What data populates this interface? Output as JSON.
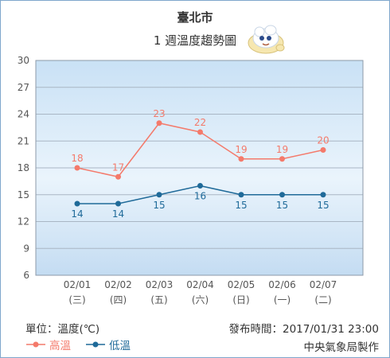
{
  "header": {
    "title": "臺北市",
    "subtitle": "1 週溫度趨勢圖",
    "mascot_icon": "weather-mascot-cloud-icon"
  },
  "chart_data": {
    "type": "line",
    "categories": [
      "02/01",
      "02/02",
      "02/03",
      "02/04",
      "02/05",
      "02/06",
      "02/07"
    ],
    "weekdays": [
      "(三)",
      "(四)",
      "(五)",
      "(六)",
      "(日)",
      "(一)",
      "(二)"
    ],
    "series": [
      {
        "name": "高溫",
        "color": "#f47a6b",
        "values": [
          18,
          17,
          23,
          22,
          19,
          19,
          20
        ]
      },
      {
        "name": "低溫",
        "color": "#1f6a99",
        "values": [
          14,
          14,
          15,
          16,
          15,
          15,
          15
        ]
      }
    ],
    "ylim": [
      6,
      30
    ],
    "yticks": [
      6,
      9,
      12,
      15,
      18,
      21,
      24,
      27,
      30
    ],
    "grid": true,
    "legend_position": "bottom-left"
  },
  "footer": {
    "unit_label": "單位：溫度(℃)",
    "issued_label": "發布時間：2017/01/31 23:00",
    "producer": "中央氣象局製作"
  }
}
